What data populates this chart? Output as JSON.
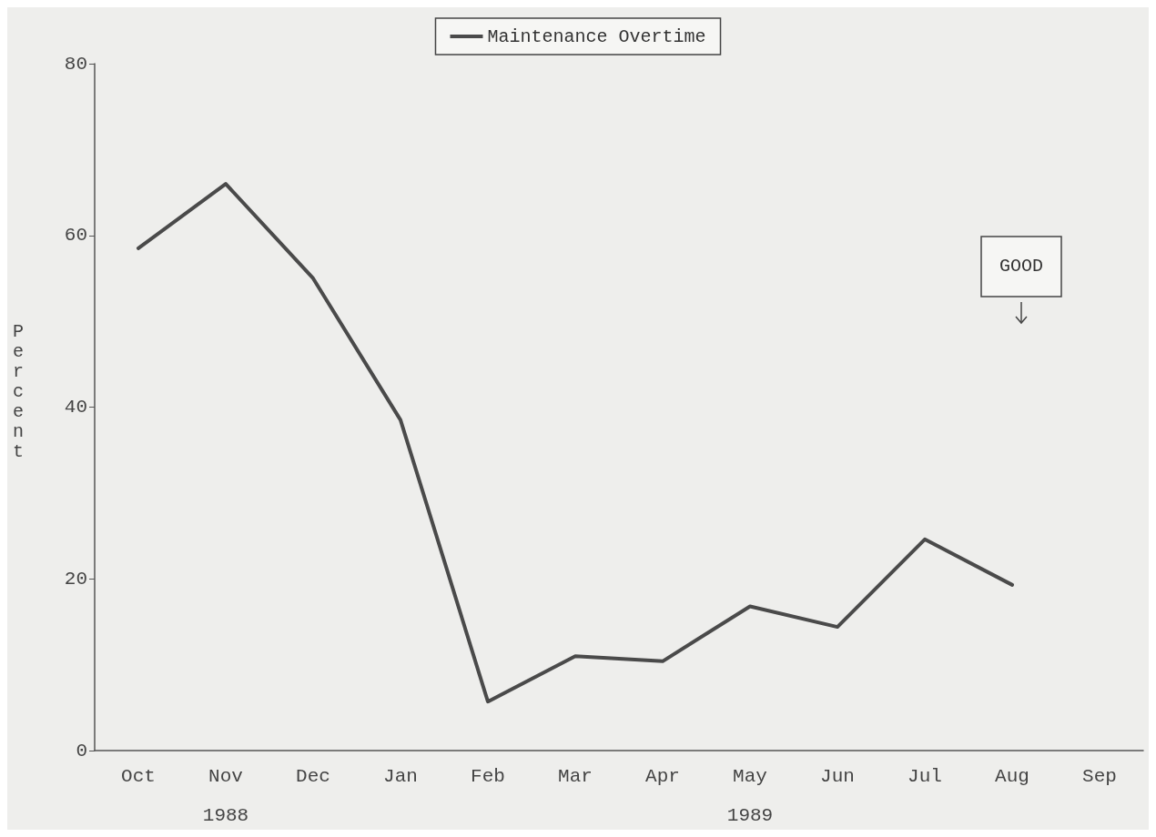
{
  "chart_data": {
    "type": "line",
    "ylabel": "Percent",
    "categories": [
      "Oct",
      "Nov",
      "Dec",
      "Jan",
      "Feb",
      "Mar",
      "Apr",
      "May",
      "Jun",
      "Jul",
      "Aug",
      "Sep"
    ],
    "series": [
      {
        "name": "Maintenance Overtime",
        "color": "#4a4a4a",
        "values": [
          58.5,
          66,
          55,
          38.5,
          5.7,
          11,
          10.4,
          16.8,
          14.4,
          24.6,
          19.3,
          null
        ]
      }
    ],
    "ylim": [
      0,
      80
    ],
    "yticks": [
      0,
      20,
      40,
      60,
      80
    ],
    "grid": false,
    "legend": "top",
    "marker": "none",
    "line_style": "solid",
    "annotations": [
      "1988",
      "1989",
      "GOOD"
    ]
  }
}
